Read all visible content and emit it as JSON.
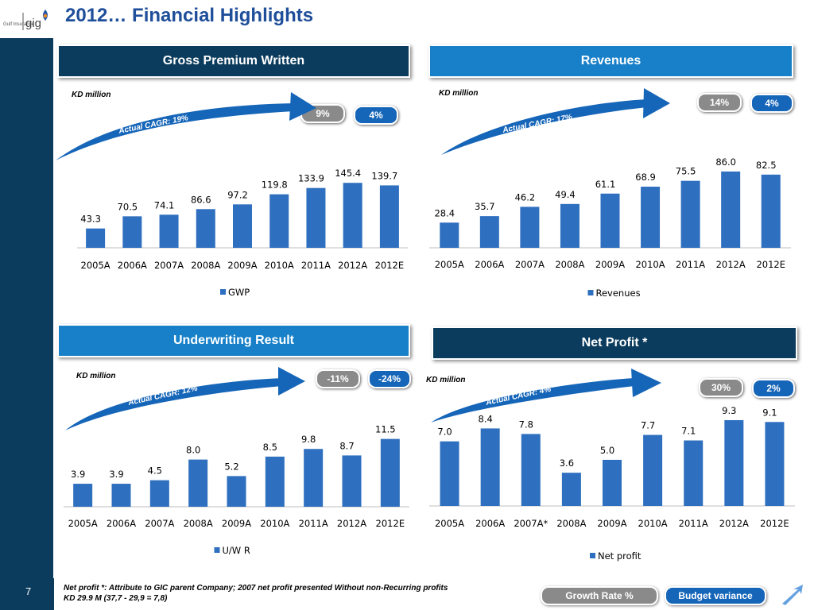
{
  "slide": {
    "title": "2012… Financial Highlights",
    "page_number": "7",
    "logo_text": "gig",
    "logo_sub": "Gulf Insurance",
    "footnote_line1": "Net profit *: Attribute to GIC parent Company; 2007 net profit presented Without non-Recurring profits",
    "footnote_line2": "KD 29.9 M (37,7 - 29,9 = 7,8)",
    "legend_growth": "Growth Rate %",
    "legend_budget": "Budget variance"
  },
  "colors": {
    "navy": "#0b3c5d",
    "bar": "#2e6fbf",
    "pill_grey": "#8a8a8a",
    "pill_blue": "#1565b8"
  },
  "chart_data": [
    {
      "id": "gwp",
      "type": "bar",
      "title": "Gross Premium Written",
      "unit_label": "KD million",
      "cagr_label": "Actual CAGR: 19%",
      "growth_rate": "9%",
      "budget_variance": "4%",
      "categories": [
        "2005A",
        "2006A",
        "2007A",
        "2008A",
        "2009A",
        "2010A",
        "2011A",
        "2012A",
        "2012E"
      ],
      "series": [
        {
          "name": "GWP",
          "values": [
            43.3,
            70.5,
            74.1,
            86.6,
            97.2,
            119.8,
            133.9,
            145.4,
            139.7
          ]
        }
      ],
      "labels": [
        "43.3",
        "70.5",
        "74.1",
        "86.6",
        "97.2",
        "119.8",
        "133.9",
        "145.4",
        "139.7"
      ],
      "ylim": [
        0,
        160
      ]
    },
    {
      "id": "rev",
      "type": "bar",
      "title": "Revenues",
      "unit_label": "KD million",
      "cagr_label": "Actual CAGR: 17%",
      "growth_rate": "14%",
      "budget_variance": "4%",
      "categories": [
        "2005A",
        "2006A",
        "2007A",
        "2008A",
        "2009A",
        "2010A",
        "2011A",
        "2012A",
        "2012E"
      ],
      "series": [
        {
          "name": "Revenues",
          "values": [
            28.4,
            35.7,
            46.2,
            49.4,
            61.1,
            68.9,
            75.5,
            86.0,
            82.5
          ]
        }
      ],
      "labels": [
        "28.4",
        "35.7",
        "46.2",
        "49.4",
        "61.1",
        "68.9",
        "75.5",
        "86.0",
        "82.5"
      ],
      "ylim": [
        0,
        94
      ]
    },
    {
      "id": "uw",
      "type": "bar",
      "title": "Underwriting Result",
      "unit_label": "KD million",
      "cagr_label": "Actual CAGR: 12%",
      "growth_rate": "-11%",
      "budget_variance": "-24%",
      "categories": [
        "2005A",
        "2006A",
        "2007A",
        "2008A",
        "2009A",
        "2010A",
        "2011A",
        "2012A",
        "2012E"
      ],
      "series": [
        {
          "name": "U/W R",
          "values": [
            3.9,
            3.9,
            4.5,
            8.0,
            5.2,
            8.5,
            9.8,
            8.7,
            11.5
          ]
        }
      ],
      "labels": [
        "3.9",
        "3.9",
        "4.5",
        "8.0",
        "5.2",
        "8.5",
        "9.8",
        "8.7",
        "11.5"
      ],
      "ylim": [
        0,
        13.2
      ]
    },
    {
      "id": "np",
      "type": "bar",
      "title": "Net Profit *",
      "unit_label": "KD million",
      "cagr_label": "Actual CAGR: 4%",
      "growth_rate": "30%",
      "budget_variance": "2%",
      "categories": [
        "2005A",
        "2006A",
        "2007A*",
        "2008A",
        "2009A",
        "2010A",
        "2011A",
        "2012A",
        "2012E"
      ],
      "series": [
        {
          "name": "Net profit",
          "values": [
            7.0,
            8.4,
            7.8,
            3.6,
            5.0,
            7.7,
            7.1,
            9.3,
            9.1
          ]
        }
      ],
      "labels": [
        "7.0",
        "8.4",
        "7.8",
        "3.6",
        "5.0",
        "7.7",
        "7.1",
        "9.3",
        "9.1"
      ],
      "ylim": [
        0,
        9.9
      ]
    }
  ]
}
